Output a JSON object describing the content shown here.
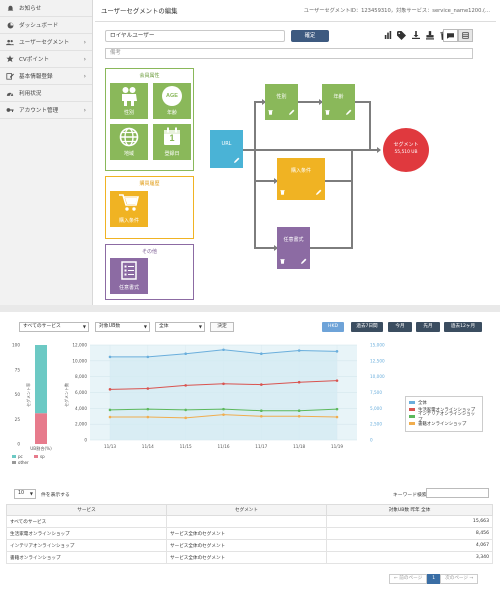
{
  "sidebar": {
    "items": [
      {
        "label": "お知らせ",
        "icon": "bell-icon",
        "chevron": false
      },
      {
        "label": "ダッシュボード",
        "icon": "dashboard-icon",
        "chevron": false
      },
      {
        "label": "ユーザーセグメント",
        "icon": "users-icon",
        "chevron": true
      },
      {
        "label": "CVポイント",
        "icon": "star-icon",
        "chevron": true
      },
      {
        "label": "基本情報登録",
        "icon": "edit-icon",
        "chevron": true
      },
      {
        "label": "利用状況",
        "icon": "speedometer-icon",
        "chevron": false
      },
      {
        "label": "アカウント管理",
        "icon": "key-icon",
        "chevron": true
      }
    ]
  },
  "header": {
    "title": "ユーザーセグメントの編集",
    "segment_id": "ユーザーセグメントID：123459310，対象サービス：service_name1200.(...",
    "name_value": "ロイヤルユーザー",
    "confirm_label": "確定",
    "memo_placeholder": "備考"
  },
  "builder": {
    "groups": {
      "member": "会員属性",
      "purchase": "購買履歴",
      "other": "その他"
    },
    "tiles": {
      "gender": "性別",
      "age": "年齢",
      "age_badge": "AGE",
      "region": "地域",
      "registration": "登録日",
      "purchase_cond": "購入条件",
      "any_form": "任意書式",
      "calendar_day": "1"
    },
    "nodes": {
      "url": "URL",
      "gender": "性別",
      "age": "年齢",
      "purchase": "購入条件",
      "any_form": "任意書式",
      "segment": "セグメント",
      "segment_count": "55,510 UB"
    }
  },
  "filters": {
    "service": "すべてのサービス",
    "metric": "対象UB数",
    "segment": "全体",
    "apply": "決定",
    "ranges": [
      "HKD",
      "過去7日間",
      "今月",
      "先月",
      "過去12ヶ月"
    ]
  },
  "chart_data": [
    {
      "type": "bar",
      "title": "",
      "ylabel": "セグメント率",
      "xlabel": "UB割合(%)",
      "ylim": [
        0,
        100
      ],
      "yticks": [
        "100",
        "75",
        "50",
        "25",
        "0"
      ],
      "stack": [
        {
          "name": "pc",
          "value": 69,
          "color": "#6cc9c4"
        },
        {
          "name": "sp",
          "value": 31,
          "color": "#e77b8c"
        }
      ],
      "legend": [
        "pc",
        "sp",
        "other"
      ]
    },
    {
      "type": "line",
      "title": "",
      "ylabel": "セグメント数",
      "categories": [
        "11/13",
        "11/14",
        "11/15",
        "11/16",
        "11/17",
        "11/18",
        "11/19"
      ],
      "ylim_left": [
        0,
        12000
      ],
      "yticks_left": [
        "12,000",
        "10,000",
        "8,000",
        "6,000",
        "4,000",
        "2,000",
        "0"
      ],
      "ylim_right": [
        0,
        15000
      ],
      "yticks_right": [
        "15,000",
        "12,500",
        "10,000",
        "7,500",
        "5,000",
        "2,500",
        "0"
      ],
      "series": [
        {
          "name": "全体",
          "color": "#6aaedc",
          "values": [
            10500,
            10500,
            10900,
            11400,
            10900,
            11300,
            11200
          ]
        },
        {
          "name": "生活家電オンラインショップ",
          "color": "#d9534f",
          "values": [
            6400,
            6500,
            6900,
            7100,
            7000,
            7300,
            7500
          ]
        },
        {
          "name": "インテリアオンラインショップ",
          "color": "#5cb85c",
          "values": [
            3800,
            3900,
            3800,
            3900,
            3700,
            3700,
            3900
          ]
        },
        {
          "name": "書籍オンラインショップ",
          "color": "#f0ad4e",
          "values": [
            2900,
            2900,
            2800,
            3200,
            3000,
            3000,
            2900
          ]
        }
      ]
    }
  ],
  "table": {
    "per_page": "10",
    "per_page_suffix": "件を表示する",
    "search_label": "キーワード検索",
    "headers": [
      "サービス",
      "セグメント",
      "対象UB数 昨年 全体"
    ],
    "rows": [
      [
        "すべてのサービス",
        "",
        "15,663"
      ],
      [
        "生活家電オンラインショップ",
        "サービス全体のセグメント",
        "8,456"
      ],
      [
        "インテリアオンラインショップ",
        "サービス全体のセグメント",
        "4,067"
      ],
      [
        "書籍オンラインショップ",
        "サービス全体のセグメント",
        "3,340"
      ]
    ],
    "pager": {
      "prev": "← 前のページ",
      "current": "1",
      "next": "次のページ →"
    }
  },
  "colors": {
    "green": "#8ab85a",
    "blue": "#4ab3d6",
    "yellow": "#f0b323",
    "purple": "#8c6ba3",
    "red": "#e0393e",
    "navy": "#3d5a80"
  }
}
